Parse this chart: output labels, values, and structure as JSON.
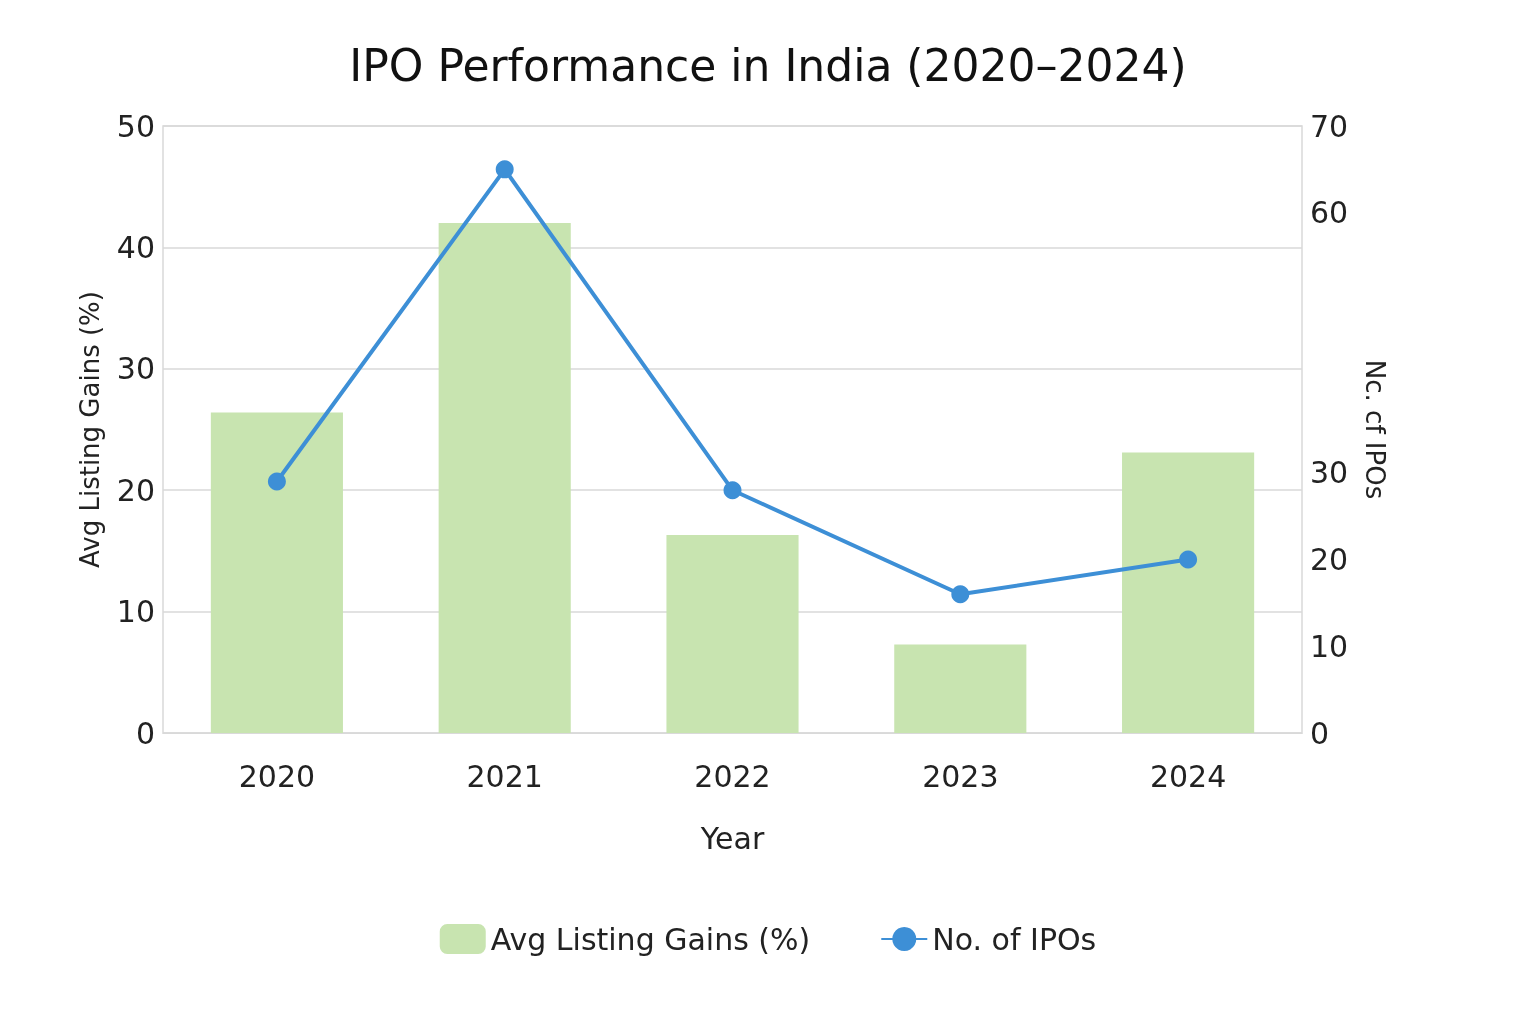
{
  "chart_data": {
    "type": "bar",
    "title": "IPO Performance in India (2020–2024)",
    "xlabel": "Year",
    "ylabel": "Avg Listing Gains (%)",
    "y2label": "Nc. cf IPOs",
    "categories": [
      "2020",
      "2021",
      "2022",
      "2023",
      "2024"
    ],
    "series": [
      {
        "name": "Avg Listing Gains (%)",
        "color": "#c8e4b0",
        "values": [
          26.4,
          42.0,
          16.3,
          7.3,
          23.1
        ]
      },
      {
        "name": "No. of IPOs",
        "type": "line",
        "axis": "y2",
        "color": "#3d8fd6",
        "marker": "circle",
        "values": [
          29,
          65,
          28,
          16,
          20
        ]
      }
    ],
    "ylim": [
      0,
      50
    ],
    "yticks": [
      0,
      10,
      20,
      30,
      40,
      50
    ],
    "y2lim": [
      0,
      70
    ],
    "y2ticks": [
      0,
      10,
      20,
      30,
      60,
      70
    ],
    "grid": "y",
    "legend": "bottom"
  }
}
